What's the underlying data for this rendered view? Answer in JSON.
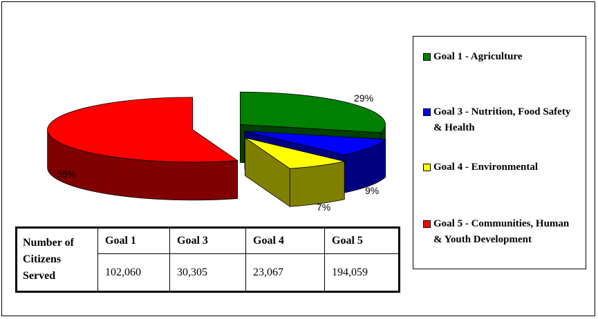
{
  "chart_data": {
    "type": "pie",
    "categories": [
      "Goal 1 - Agriculture",
      "Goal 3 - Nutrition, Food Safety & Health",
      "Goal 4 - Environmental",
      "Goal 5 - Communities, Human & Youth Development"
    ],
    "values": [
      29,
      9,
      7,
      55
    ],
    "labels": [
      "29%",
      "9%",
      "7%",
      "55%"
    ],
    "colors": [
      "#008000",
      "#0000ff",
      "#ffff00",
      "#ff0000"
    ],
    "legend_position": "right"
  },
  "legend": {
    "items": [
      "Goal 1 - Agriculture",
      "Goal 3 - Nutrition, Food Safety & Health",
      "Goal 4 - Environmental",
      "Goal 5 - Communities, Human & Youth Development"
    ]
  },
  "table": {
    "row_label": "Number of Citizens Served",
    "headers": [
      "Goal 1",
      "Goal 3",
      "Goal 4",
      "Goal 5"
    ],
    "values": [
      "102,060",
      "30,305",
      "23,067",
      "194,059"
    ]
  }
}
